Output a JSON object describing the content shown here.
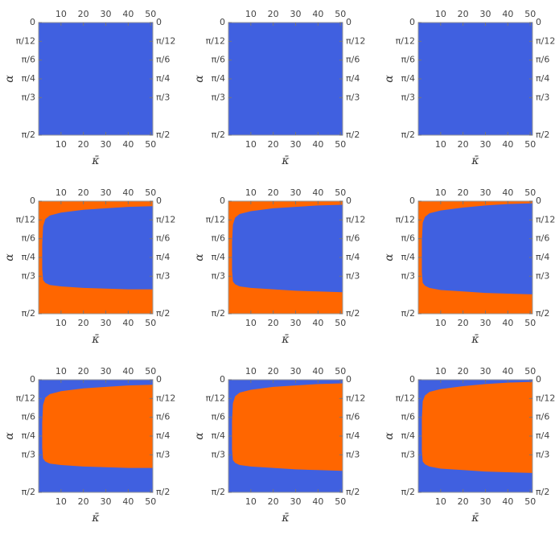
{
  "chart_data": [
    {
      "type": "region",
      "background": "#4060e0",
      "xlabel": "κ̄",
      "ylabel": "α",
      "xlim": [
        0,
        51
      ],
      "xticks": [
        10,
        20,
        30,
        40,
        50
      ],
      "ylim": [
        1.5708,
        0
      ],
      "yticks": [
        0,
        {
          "value": 0.2618,
          "label": "π/12"
        },
        {
          "value": 0.5236,
          "label": "π/6"
        },
        {
          "value": 0.7854,
          "label": "π/4"
        },
        {
          "value": 1.0472,
          "label": "π/3"
        },
        {
          "value": 1.5708,
          "label": "π/2"
        }
      ]
    },
    {
      "type": "region",
      "background": "#4060e0",
      "xlabel": "κ̄",
      "ylabel": "α",
      "xlim": [
        0,
        51
      ],
      "xticks": [
        10,
        20,
        30,
        40,
        50
      ],
      "ylim": [
        1.5708,
        0
      ],
      "yticks": [
        0,
        {
          "value": 0.2618,
          "label": "π/12"
        },
        {
          "value": 0.5236,
          "label": "π/6"
        },
        {
          "value": 0.7854,
          "label": "π/4"
        },
        {
          "value": 1.0472,
          "label": "π/3"
        },
        {
          "value": 1.5708,
          "label": "π/2"
        }
      ]
    },
    {
      "type": "region",
      "background": "#4060e0",
      "xlabel": "κ̄",
      "ylabel": "α",
      "xlim": [
        0,
        51
      ],
      "xticks": [
        10,
        20,
        30,
        40,
        50
      ],
      "ylim": [
        1.5708,
        0
      ],
      "yticks": [
        0,
        {
          "value": 0.2618,
          "label": "π/12"
        },
        {
          "value": 0.5236,
          "label": "π/6"
        },
        {
          "value": 0.7854,
          "label": "π/4"
        },
        {
          "value": 1.0472,
          "label": "π/3"
        },
        {
          "value": 1.5708,
          "label": "π/2"
        }
      ]
    },
    {
      "type": "region",
      "background": "#ff6600",
      "xlabel": "κ̄",
      "ylabel": "α",
      "xlim": [
        0,
        51
      ],
      "xticks": [
        10,
        20,
        30,
        40,
        50
      ],
      "ylim": [
        1.5708,
        0
      ],
      "yticks": [
        0,
        {
          "value": 0.2618,
          "label": "π/12"
        },
        {
          "value": 0.5236,
          "label": "π/6"
        },
        {
          "value": 0.7854,
          "label": "π/4"
        },
        {
          "value": 1.0472,
          "label": "π/3"
        },
        {
          "value": 1.5708,
          "label": "π/2"
        }
      ],
      "region": {
        "color": "#4060e0",
        "x": [
          1.6,
          2,
          3,
          5,
          10,
          20,
          30,
          40,
          51
        ],
        "lower": [
          0.6,
          0.35,
          0.25,
          0.2,
          0.16,
          0.12,
          0.1,
          0.08,
          0.07
        ],
        "upper": [
          0.95,
          1.1,
          1.14,
          1.17,
          1.19,
          1.21,
          1.22,
          1.23,
          1.23
        ]
      }
    },
    {
      "type": "region",
      "background": "#ff6600",
      "xlabel": "κ̄",
      "ylabel": "α",
      "xlim": [
        0,
        51
      ],
      "xticks": [
        10,
        20,
        30,
        40,
        50
      ],
      "ylim": [
        1.5708,
        0
      ],
      "yticks": [
        0,
        {
          "value": 0.2618,
          "label": "π/12"
        },
        {
          "value": 0.5236,
          "label": "π/6"
        },
        {
          "value": 0.7854,
          "label": "π/4"
        },
        {
          "value": 1.0472,
          "label": "π/3"
        },
        {
          "value": 1.5708,
          "label": "π/2"
        }
      ],
      "region": {
        "color": "#4060e0",
        "x": [
          1.6,
          2,
          3,
          5,
          10,
          20,
          30,
          40,
          51
        ],
        "lower": [
          0.58,
          0.33,
          0.23,
          0.18,
          0.14,
          0.1,
          0.08,
          0.06,
          0.05
        ],
        "upper": [
          0.97,
          1.12,
          1.16,
          1.19,
          1.21,
          1.23,
          1.25,
          1.26,
          1.27
        ]
      }
    },
    {
      "type": "region",
      "background": "#ff6600",
      "xlabel": "κ̄",
      "ylabel": "α",
      "xlim": [
        0,
        51
      ],
      "xticks": [
        10,
        20,
        30,
        40,
        50
      ],
      "ylim": [
        1.5708,
        0
      ],
      "yticks": [
        0,
        {
          "value": 0.2618,
          "label": "π/12"
        },
        {
          "value": 0.5236,
          "label": "π/6"
        },
        {
          "value": 0.7854,
          "label": "π/4"
        },
        {
          "value": 1.0472,
          "label": "π/3"
        },
        {
          "value": 1.5708,
          "label": "π/2"
        }
      ],
      "region": {
        "color": "#4060e0",
        "x": [
          1.6,
          2,
          3,
          5,
          10,
          20,
          30,
          40,
          51
        ],
        "lower": [
          0.55,
          0.3,
          0.22,
          0.17,
          0.13,
          0.09,
          0.06,
          0.04,
          0.03
        ],
        "upper": [
          0.99,
          1.14,
          1.18,
          1.21,
          1.24,
          1.26,
          1.28,
          1.29,
          1.3
        ]
      }
    },
    {
      "type": "region",
      "background": "#4060e0",
      "xlabel": "κ̄",
      "ylabel": "α",
      "xlim": [
        0,
        51
      ],
      "xticks": [
        10,
        20,
        30,
        40,
        50
      ],
      "ylim": [
        1.5708,
        0
      ],
      "yticks": [
        0,
        {
          "value": 0.2618,
          "label": "π/12"
        },
        {
          "value": 0.5236,
          "label": "π/6"
        },
        {
          "value": 0.7854,
          "label": "π/4"
        },
        {
          "value": 1.0472,
          "label": "π/3"
        },
        {
          "value": 1.5708,
          "label": "π/2"
        }
      ],
      "region": {
        "color": "#ff6600",
        "x": [
          1.6,
          2,
          3,
          5,
          10,
          20,
          30,
          40,
          51
        ],
        "lower": [
          0.6,
          0.35,
          0.25,
          0.2,
          0.16,
          0.12,
          0.1,
          0.08,
          0.07
        ],
        "upper": [
          0.95,
          1.1,
          1.14,
          1.17,
          1.19,
          1.21,
          1.22,
          1.23,
          1.23
        ]
      }
    },
    {
      "type": "region",
      "background": "#4060e0",
      "xlabel": "κ̄",
      "ylabel": "α",
      "xlim": [
        0,
        51
      ],
      "xticks": [
        10,
        20,
        30,
        40,
        50
      ],
      "ylim": [
        1.5708,
        0
      ],
      "yticks": [
        0,
        {
          "value": 0.2618,
          "label": "π/12"
        },
        {
          "value": 0.5236,
          "label": "π/6"
        },
        {
          "value": 0.7854,
          "label": "π/4"
        },
        {
          "value": 1.0472,
          "label": "π/3"
        },
        {
          "value": 1.5708,
          "label": "π/2"
        }
      ],
      "region": {
        "color": "#ff6600",
        "x": [
          1.6,
          2,
          3,
          5,
          10,
          20,
          30,
          40,
          51
        ],
        "lower": [
          0.58,
          0.33,
          0.23,
          0.18,
          0.14,
          0.1,
          0.08,
          0.06,
          0.05
        ],
        "upper": [
          0.97,
          1.12,
          1.16,
          1.19,
          1.21,
          1.23,
          1.25,
          1.26,
          1.27
        ]
      }
    },
    {
      "type": "region",
      "background": "#4060e0",
      "xlabel": "κ̄",
      "ylabel": "α",
      "xlim": [
        0,
        51
      ],
      "xticks": [
        10,
        20,
        30,
        40,
        50
      ],
      "ylim": [
        1.5708,
        0
      ],
      "yticks": [
        0,
        {
          "value": 0.2618,
          "label": "π/12"
        },
        {
          "value": 0.5236,
          "label": "π/6"
        },
        {
          "value": 0.7854,
          "label": "π/4"
        },
        {
          "value": 1.0472,
          "label": "π/3"
        },
        {
          "value": 1.5708,
          "label": "π/2"
        }
      ],
      "region": {
        "color": "#ff6600",
        "x": [
          1.6,
          2,
          3,
          5,
          10,
          20,
          30,
          40,
          51
        ],
        "lower": [
          0.55,
          0.3,
          0.22,
          0.17,
          0.13,
          0.09,
          0.06,
          0.04,
          0.03
        ],
        "upper": [
          0.99,
          1.14,
          1.18,
          1.21,
          1.24,
          1.26,
          1.28,
          1.29,
          1.3
        ]
      }
    }
  ]
}
